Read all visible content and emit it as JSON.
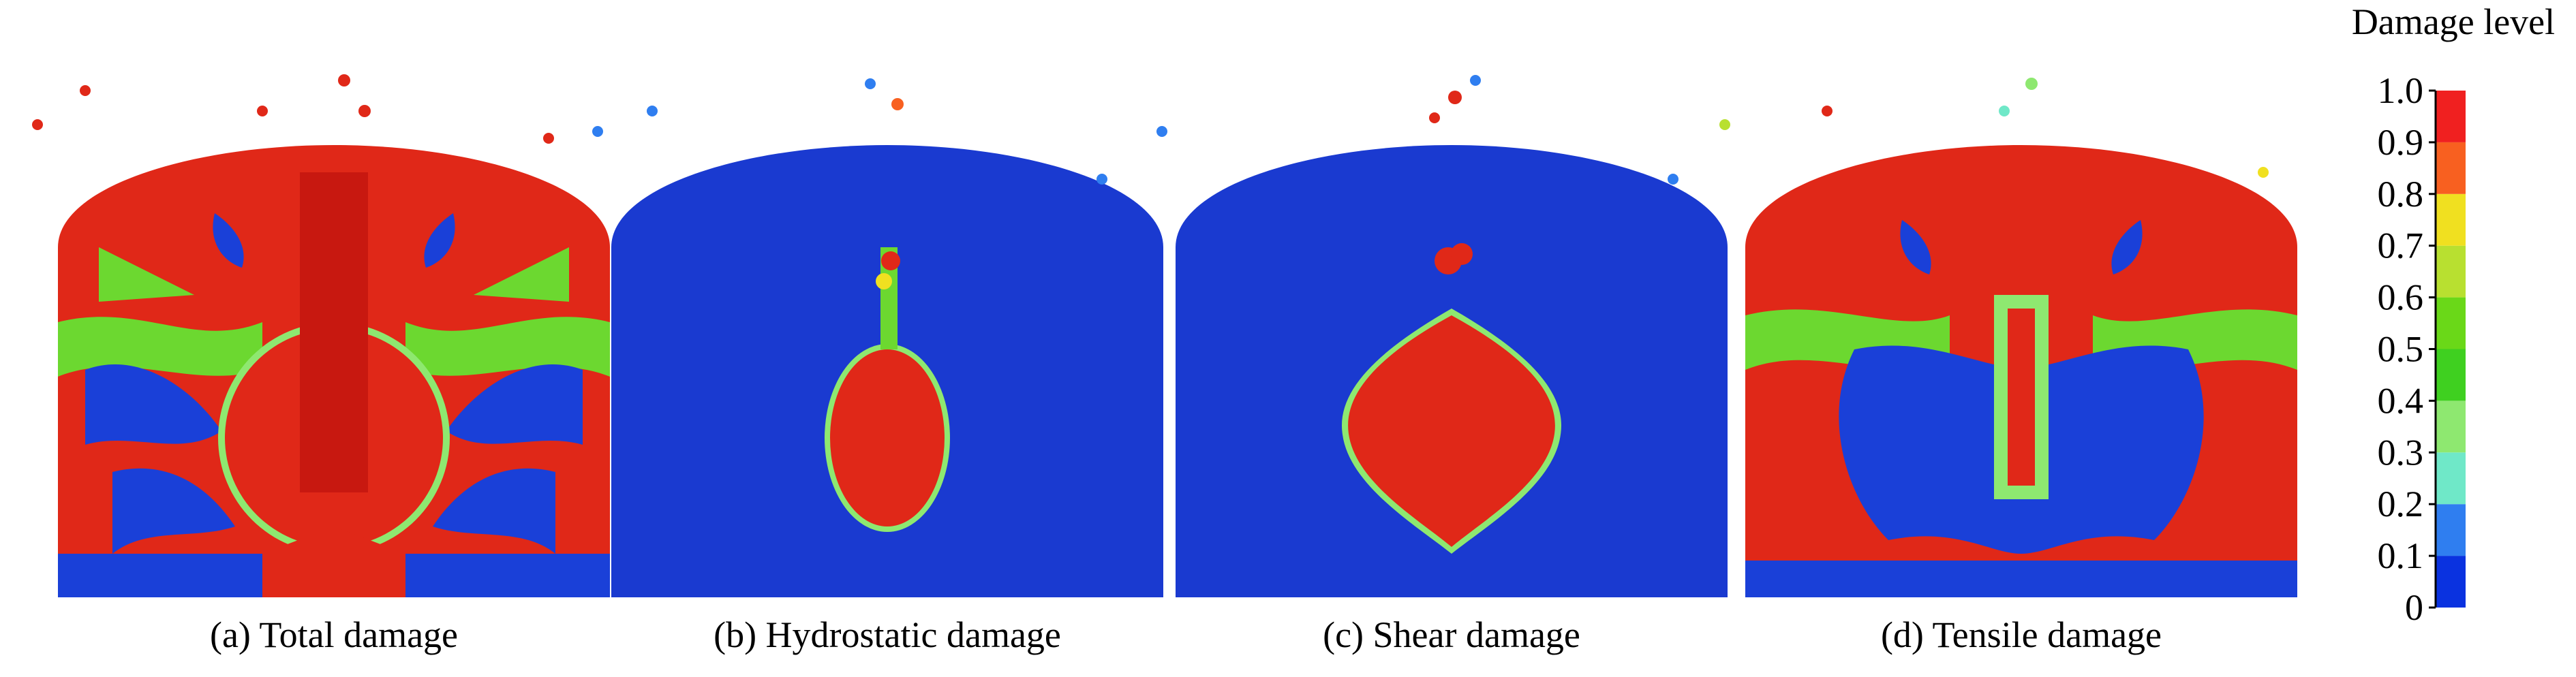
{
  "panels": [
    {
      "caption": "(a) Total damage"
    },
    {
      "caption": "(b) Hydrostatic damage"
    },
    {
      "caption": "(c) Shear damage"
    },
    {
      "caption": "(d) Tensile damage"
    }
  ],
  "colorbar": {
    "title": "Damage level",
    "ticks": [
      0,
      0.1,
      0.2,
      0.3,
      0.4,
      0.5,
      0.6,
      0.7,
      0.8,
      0.9,
      {
        "value": 1,
        "label": "1.0"
      }
    ],
    "colors": [
      "#0a32e0",
      "#2f7ef0",
      "#6fe8c8",
      "#8ee870",
      "#3fd020",
      "#6ad818",
      "#b8e030",
      "#f0e020",
      "#f86020",
      "#f02020"
    ]
  }
}
